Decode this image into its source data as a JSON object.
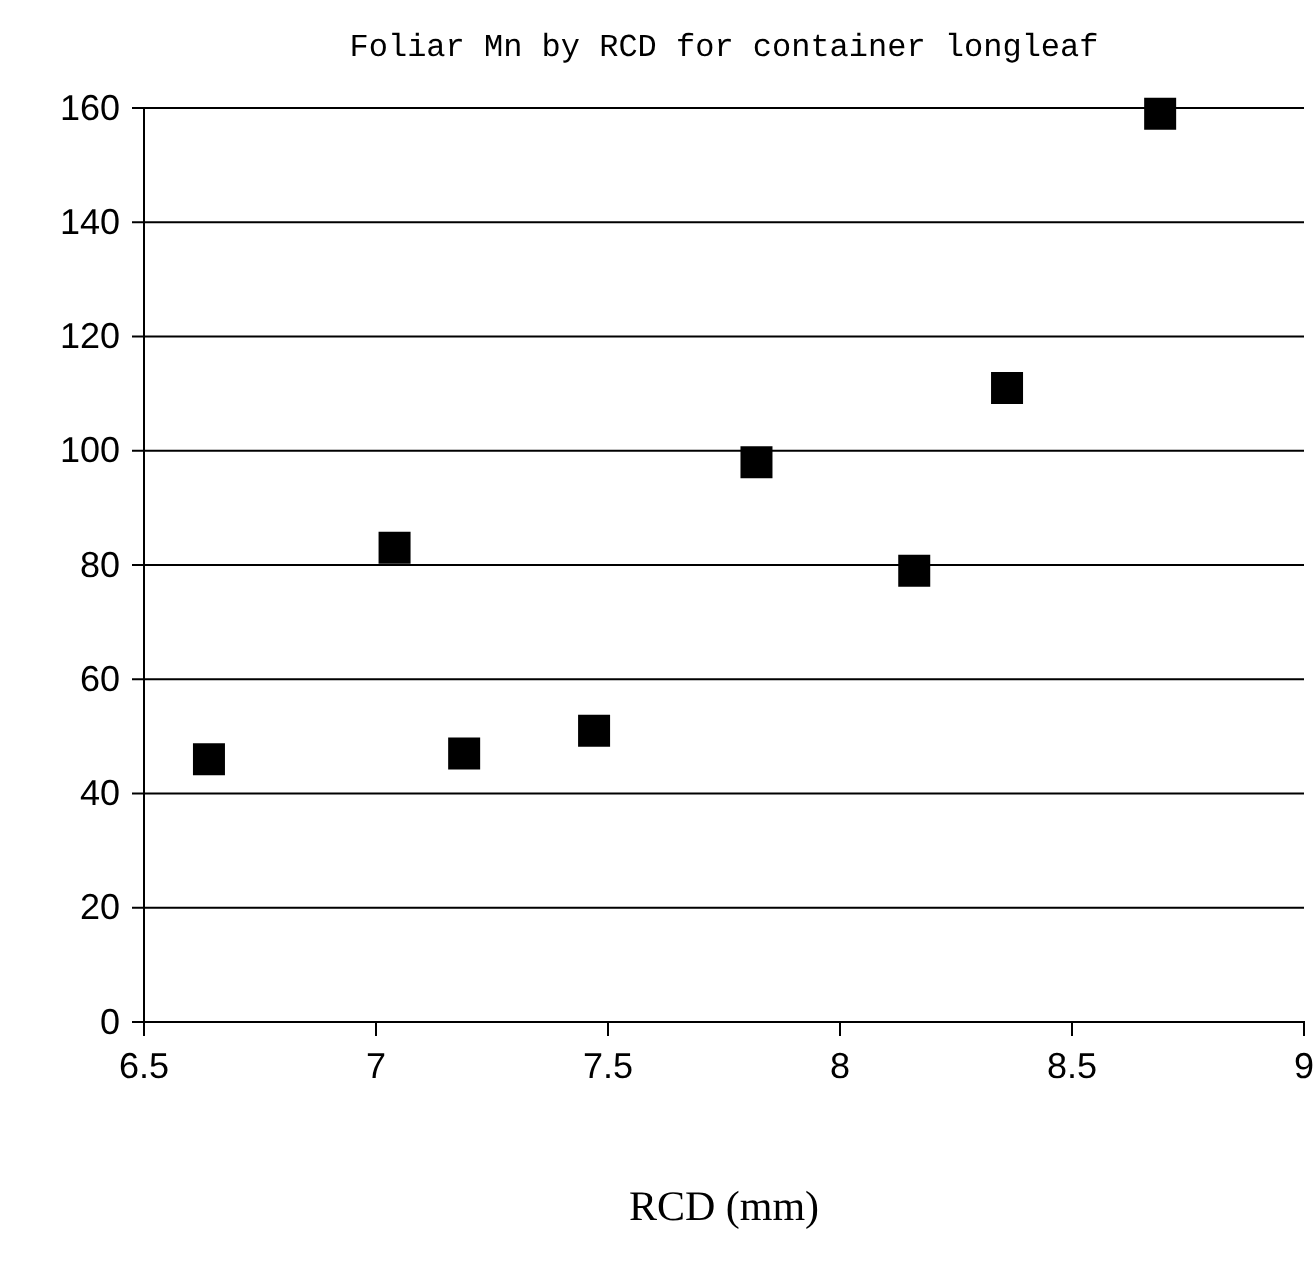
{
  "chart_data": {
    "type": "scatter",
    "title": "Foliar Mn by RCD for container longleaf",
    "xlabel": "RCD (mm)",
    "x": [
      6.64,
      7.04,
      7.19,
      7.47,
      7.82,
      8.16,
      8.36,
      8.69
    ],
    "values": [
      46,
      83,
      47,
      51,
      98,
      79,
      111,
      159
    ],
    "color": "#000000",
    "marker": "square",
    "grid": "y",
    "xlim": [
      6.5,
      9
    ],
    "xticks": [
      6.5,
      7,
      7.5,
      8,
      8.5,
      9
    ],
    "ylim": [
      0,
      160
    ],
    "yticks": [
      0,
      20,
      40,
      60,
      80,
      100,
      120,
      140,
      160
    ]
  }
}
